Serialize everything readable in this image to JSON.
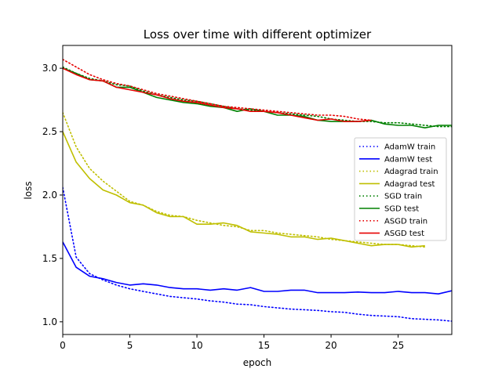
{
  "chart_data": {
    "type": "line",
    "title": "Loss over time with different optimizer",
    "xlabel": "epoch",
    "ylabel": "loss",
    "xlim": [
      0,
      29
    ],
    "ylim": [
      0.9,
      3.18
    ],
    "xticks": [
      0,
      5,
      10,
      15,
      20,
      25
    ],
    "yticks": [
      1.0,
      1.5,
      2.0,
      2.5,
      3.0
    ],
    "xtick_labels": [
      "0",
      "5",
      "10",
      "15",
      "20",
      "25"
    ],
    "ytick_labels": [
      "1.0",
      "1.5",
      "2.0",
      "2.5",
      "3.0"
    ],
    "grid": false,
    "legend_position": "right",
    "series": [
      {
        "name": "AdamW train",
        "color": "#0000ff",
        "style": "dotted",
        "x": [
          0,
          1,
          2,
          3,
          4,
          5,
          6,
          7,
          8,
          9,
          10,
          11,
          12,
          13,
          14,
          15,
          16,
          17,
          18,
          19,
          20,
          21,
          22,
          23,
          24,
          25,
          26,
          27,
          28,
          29
        ],
        "y": [
          2.06,
          1.51,
          1.38,
          1.33,
          1.29,
          1.26,
          1.24,
          1.22,
          1.2,
          1.19,
          1.18,
          1.165,
          1.155,
          1.14,
          1.135,
          1.12,
          1.11,
          1.1,
          1.095,
          1.09,
          1.08,
          1.075,
          1.06,
          1.05,
          1.045,
          1.04,
          1.025,
          1.02,
          1.015,
          1.005
        ]
      },
      {
        "name": "AdamW test",
        "color": "#0000ff",
        "style": "solid",
        "x": [
          0,
          1,
          2,
          3,
          4,
          5,
          6,
          7,
          8,
          9,
          10,
          11,
          12,
          13,
          14,
          15,
          16,
          17,
          18,
          19,
          20,
          21,
          22,
          23,
          24,
          25,
          26,
          27,
          28,
          29
        ],
        "y": [
          1.63,
          1.43,
          1.36,
          1.34,
          1.31,
          1.29,
          1.3,
          1.29,
          1.27,
          1.26,
          1.26,
          1.25,
          1.26,
          1.25,
          1.27,
          1.24,
          1.24,
          1.25,
          1.25,
          1.23,
          1.23,
          1.23,
          1.235,
          1.23,
          1.23,
          1.24,
          1.23,
          1.23,
          1.22,
          1.245
        ]
      },
      {
        "name": "Adagrad train",
        "color": "#bfbf00",
        "style": "dotted",
        "x": [
          0,
          1,
          2,
          3,
          4,
          5,
          6,
          7,
          8,
          9,
          10,
          11,
          12,
          13,
          14,
          15,
          16,
          17,
          18,
          19,
          20,
          21,
          22,
          23,
          24,
          25,
          26,
          27
        ],
        "y": [
          2.65,
          2.38,
          2.21,
          2.11,
          2.03,
          1.95,
          1.92,
          1.87,
          1.84,
          1.83,
          1.8,
          1.78,
          1.76,
          1.75,
          1.72,
          1.72,
          1.7,
          1.69,
          1.68,
          1.67,
          1.65,
          1.64,
          1.63,
          1.62,
          1.61,
          1.61,
          1.6,
          1.59
        ]
      },
      {
        "name": "Adagrad test",
        "color": "#bfbf00",
        "style": "solid",
        "x": [
          0,
          1,
          2,
          3,
          4,
          5,
          6,
          7,
          8,
          9,
          10,
          11,
          12,
          13,
          14,
          15,
          16,
          17,
          18,
          19,
          20,
          21,
          22,
          23,
          24,
          25,
          26,
          27
        ],
        "y": [
          2.5,
          2.26,
          2.13,
          2.04,
          2.0,
          1.94,
          1.92,
          1.86,
          1.83,
          1.83,
          1.77,
          1.77,
          1.78,
          1.76,
          1.71,
          1.7,
          1.69,
          1.67,
          1.67,
          1.65,
          1.66,
          1.64,
          1.62,
          1.6,
          1.61,
          1.61,
          1.59,
          1.6
        ]
      },
      {
        "name": "SGD train",
        "color": "#008000",
        "style": "dotted",
        "x": [
          0,
          1,
          2,
          3,
          4,
          5,
          6,
          7,
          8,
          9,
          10,
          11,
          12,
          13,
          14,
          15,
          16,
          17,
          18,
          19,
          20,
          21,
          22,
          23,
          24,
          25,
          26,
          27,
          28,
          29
        ],
        "y": [
          3.01,
          2.96,
          2.92,
          2.9,
          2.87,
          2.86,
          2.82,
          2.79,
          2.77,
          2.75,
          2.74,
          2.72,
          2.7,
          2.68,
          2.67,
          2.66,
          2.65,
          2.64,
          2.63,
          2.62,
          2.6,
          2.59,
          2.58,
          2.58,
          2.57,
          2.57,
          2.56,
          2.55,
          2.54,
          2.54
        ]
      },
      {
        "name": "SGD test",
        "color": "#008000",
        "style": "solid",
        "x": [
          0,
          1,
          2,
          3,
          4,
          5,
          6,
          7,
          8,
          9,
          10,
          11,
          12,
          13,
          14,
          15,
          16,
          17,
          18,
          19,
          20,
          21,
          22,
          23,
          24,
          25,
          26,
          27,
          28,
          29
        ],
        "y": [
          3.0,
          2.96,
          2.91,
          2.9,
          2.85,
          2.85,
          2.81,
          2.77,
          2.75,
          2.73,
          2.72,
          2.7,
          2.69,
          2.66,
          2.68,
          2.66,
          2.63,
          2.63,
          2.62,
          2.59,
          2.58,
          2.58,
          2.58,
          2.59,
          2.56,
          2.55,
          2.55,
          2.53,
          2.55,
          2.55
        ]
      },
      {
        "name": "ASGD train",
        "color": "#e60000",
        "style": "dotted",
        "x": [
          0,
          1,
          2,
          3,
          4,
          5,
          6,
          7,
          8,
          9,
          10,
          11,
          12,
          13,
          14,
          15,
          16,
          17,
          18,
          19,
          20,
          21,
          22,
          23
        ],
        "y": [
          3.07,
          3.01,
          2.95,
          2.91,
          2.88,
          2.86,
          2.83,
          2.8,
          2.78,
          2.76,
          2.74,
          2.72,
          2.7,
          2.69,
          2.68,
          2.67,
          2.66,
          2.65,
          2.64,
          2.63,
          2.63,
          2.62,
          2.6,
          2.59
        ]
      },
      {
        "name": "ASGD test",
        "color": "#e60000",
        "style": "solid",
        "x": [
          0,
          1,
          2,
          3,
          4,
          5,
          6,
          7,
          8,
          9,
          10,
          11,
          12,
          13,
          14,
          15,
          16,
          17,
          18,
          19,
          20,
          21,
          22,
          23
        ],
        "y": [
          3.0,
          2.95,
          2.91,
          2.9,
          2.85,
          2.83,
          2.81,
          2.79,
          2.76,
          2.74,
          2.73,
          2.71,
          2.69,
          2.68,
          2.66,
          2.66,
          2.65,
          2.63,
          2.61,
          2.59,
          2.6,
          2.58,
          2.58,
          2.59
        ]
      }
    ]
  }
}
